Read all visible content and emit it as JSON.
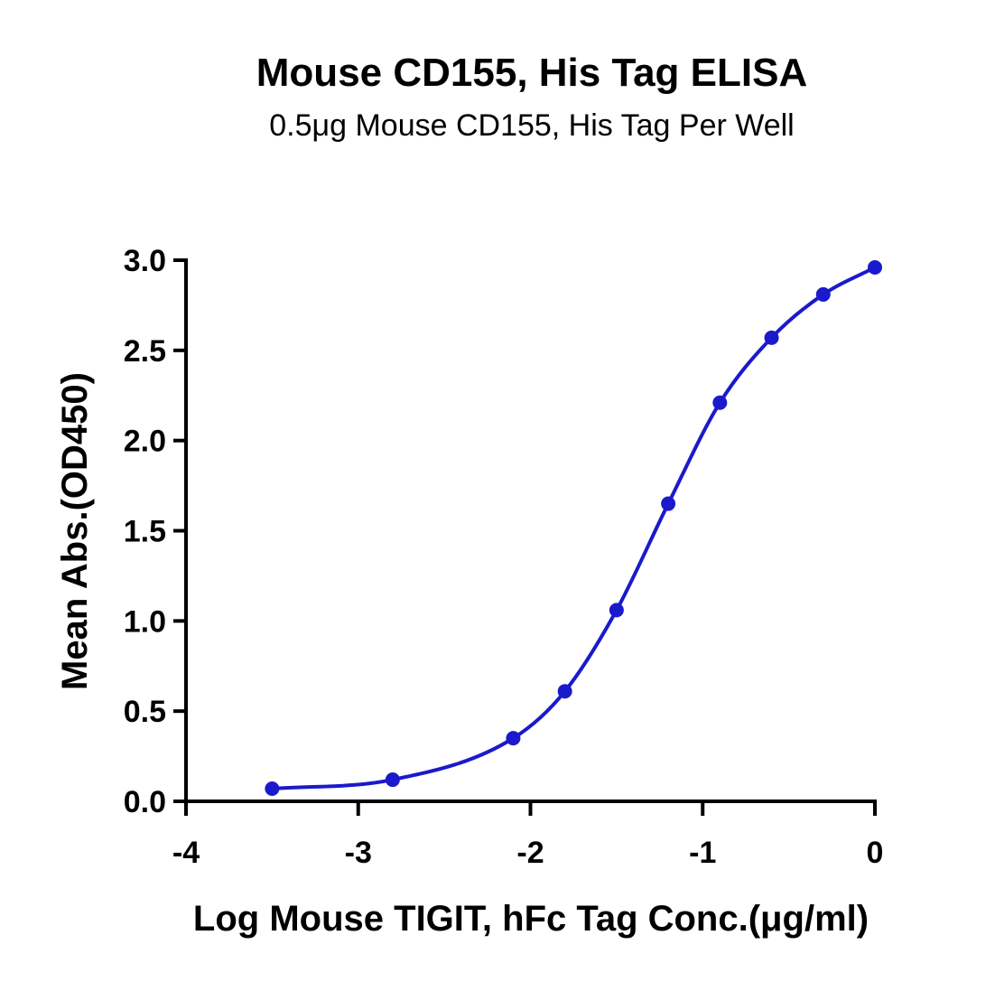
{
  "chart_data": {
    "type": "line",
    "title": "Mouse CD155, His Tag ELISA",
    "subtitle": "0.5μg Mouse CD155, His Tag Per Well",
    "xlabel": "Log Mouse TIGIT, hFc Tag Conc.(μg/ml)",
    "ylabel": "Mean Abs.(OD450)",
    "xlim": [
      -4,
      0
    ],
    "ylim": [
      0,
      3.0
    ],
    "x_ticks": [
      -4,
      -3,
      -2,
      -1,
      0
    ],
    "x_tick_labels": [
      "-4",
      "-3",
      "-2",
      "-1",
      "0"
    ],
    "y_ticks": [
      0,
      0.5,
      1.0,
      1.5,
      2.0,
      2.5,
      3.0
    ],
    "y_tick_labels": [
      "0.0",
      "0.5",
      "1.0",
      "1.5",
      "2.0",
      "2.5",
      "3.0"
    ],
    "grid": false,
    "series": [
      {
        "x": [
          -3.5,
          -2.8,
          -2.1,
          -1.8,
          -1.5,
          -1.2,
          -0.9,
          -0.6,
          -0.3,
          0.0
        ],
        "y": [
          0.07,
          0.12,
          0.35,
          0.61,
          1.06,
          1.65,
          2.21,
          2.57,
          2.81,
          2.96
        ],
        "fit": "sigmoid",
        "color": "#1a1acc"
      }
    ]
  }
}
